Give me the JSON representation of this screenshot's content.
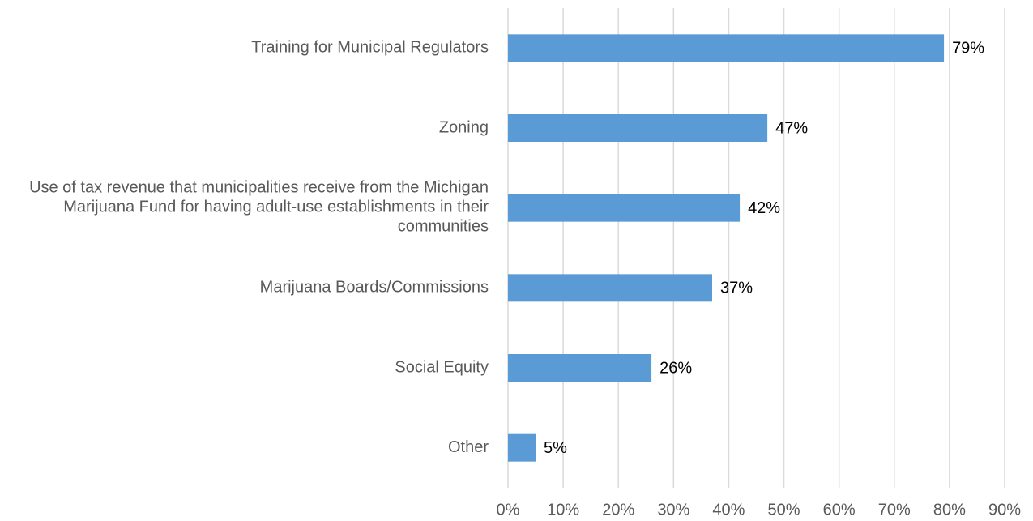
{
  "chart_data": {
    "type": "bar",
    "orientation": "horizontal",
    "categories": [
      "Training for Municipal Regulators",
      "Zoning",
      "Use of tax revenue that municipalities receive from the Michigan Marijuana Fund for having adult-use establishments in their communities",
      "Marijuana Boards/Commissions",
      "Social Equity",
      "Other"
    ],
    "values": [
      79,
      47,
      42,
      37,
      26,
      5
    ],
    "value_labels": [
      "79%",
      "47%",
      "42%",
      "37%",
      "26%",
      "5%"
    ],
    "color": "#5b9bd5",
    "xlim": [
      0,
      90
    ],
    "xticks": [
      {
        "value": 0,
        "label": "0%"
      },
      {
        "value": 10,
        "label": "10%"
      },
      {
        "value": 20,
        "label": "20%"
      },
      {
        "value": 30,
        "label": "30%"
      },
      {
        "value": 40,
        "label": "40%"
      },
      {
        "value": 50,
        "label": "50%"
      },
      {
        "value": 60,
        "label": "60%"
      },
      {
        "value": 70,
        "label": "70%"
      },
      {
        "value": 80,
        "label": "80%"
      },
      {
        "value": 90,
        "label": "90%"
      }
    ],
    "grid": true
  }
}
